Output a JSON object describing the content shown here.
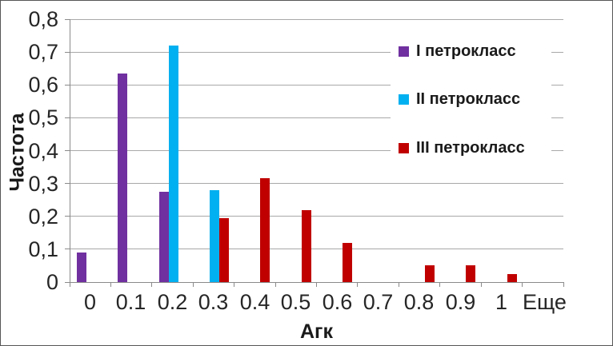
{
  "chart_data": {
    "type": "bar",
    "title": "",
    "xlabel": "Агк",
    "ylabel": "Частота",
    "categories": [
      "0",
      "0.1",
      "0.2",
      "0.3",
      "0.4",
      "0.5",
      "0.6",
      "0.7",
      "0.8",
      "0.9",
      "1",
      "Еще"
    ],
    "y_tick_labels": [
      "0",
      "0,1",
      "0,2",
      "0,3",
      "0,4",
      "0,5",
      "0,6",
      "0,7",
      "0,8"
    ],
    "ylim": [
      0,
      0.8
    ],
    "grid": "horizontal",
    "legend_position": "inside-top-right",
    "series": [
      {
        "name": "I петрокласс",
        "color": "#7030A0",
        "values": [
          0.09,
          0.635,
          0.275,
          0,
          0,
          0,
          0,
          0,
          0,
          0,
          0,
          0
        ]
      },
      {
        "name": "II петрокласс",
        "color": "#00B0F0",
        "values": [
          0,
          0,
          0.72,
          0.28,
          0,
          0,
          0,
          0,
          0,
          0,
          0,
          0
        ]
      },
      {
        "name": "III петрокласс",
        "color": "#C00000",
        "values": [
          0,
          0,
          0,
          0.195,
          0.315,
          0.22,
          0.12,
          0,
          0.05,
          0.05,
          0.025,
          0
        ]
      }
    ],
    "colors": {
      "gridline": "#a8a8a8",
      "axis": "#8a8a8a",
      "text": "#262626"
    }
  }
}
